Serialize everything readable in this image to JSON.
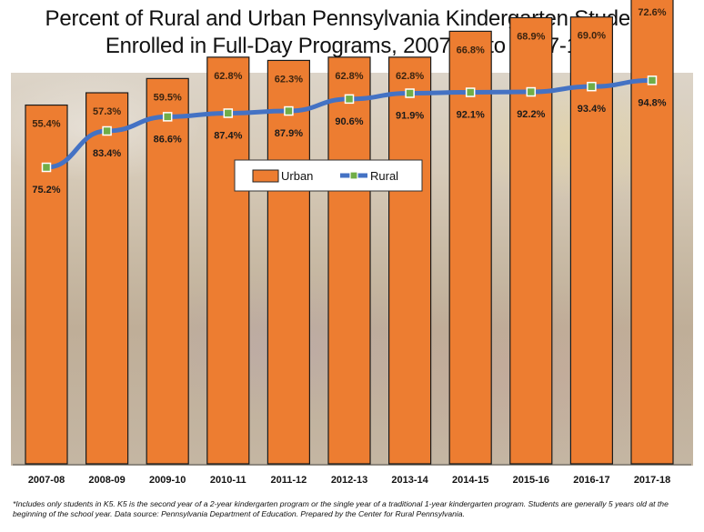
{
  "title_line1": "Percent of Rural and Urban Pennsylvania Kindergarten Students",
  "title_line2": "Enrolled in Full-Day Programs, 2007-08 to 2017-18*",
  "footnote": "*Includes only students in K5. K5 is the second year of a 2-year kindergarten program or the single year of a traditional 1-year kindergarten program. Students are generally 5 years old at the beginning of the school year. Data source: Pennsylvania Department of Education. Prepared by the Center for Rural Pennsylvania.",
  "colors": {
    "urban": "#ed7d31",
    "rural": "#4472c4",
    "marker": "#70ad47"
  },
  "chart_data": {
    "type": "bar",
    "title": "Percent of Rural and Urban Pennsylvania Kindergarten Students Enrolled in Full-Day Programs, 2007-08 to 2017-18*",
    "categories": [
      "2007-08",
      "2008-09",
      "2009-10",
      "2010-11",
      "2011-12",
      "2012-13",
      "2013-14",
      "2014-15",
      "2015-16",
      "2016-17",
      "2017-18"
    ],
    "series": [
      {
        "name": "Urban",
        "type": "bar",
        "values": [
          55.4,
          57.3,
          59.5,
          62.8,
          62.3,
          62.8,
          62.8,
          66.8,
          68.9,
          69.0,
          72.6
        ],
        "labels": [
          "55.4%",
          "57.3%",
          "59.5%",
          "62.8%",
          "62.3%",
          "62.8%",
          "62.8%",
          "66.8%",
          "68.9%",
          "69.0%",
          "72.6%"
        ]
      },
      {
        "name": "Rural",
        "type": "line",
        "values": [
          75.2,
          83.4,
          86.6,
          87.4,
          87.9,
          90.6,
          91.9,
          92.1,
          92.2,
          93.4,
          94.8
        ],
        "labels": [
          "75.2%",
          "83.4%",
          "86.6%",
          "87.4%",
          "87.9%",
          "90.6%",
          "91.9%",
          "92.1%",
          "92.2%",
          "93.4%",
          "94.8%"
        ]
      }
    ],
    "legend": {
      "placement": "center",
      "entries": [
        "Urban",
        "Rural"
      ]
    },
    "grid": false
  }
}
